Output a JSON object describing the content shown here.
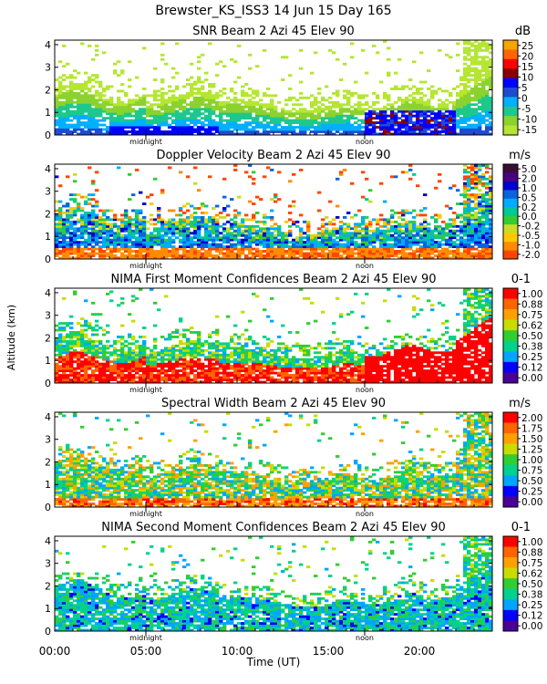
{
  "figure": {
    "title": "Brewster_KS_ISS3  14 Jun 15 Day 165",
    "xlabel": "Time (UT)",
    "ylabel": "Altitude (km)",
    "x_ticks": [
      {
        "value": 0,
        "label": "00:00"
      },
      {
        "value": 5,
        "label": "05:00"
      },
      {
        "value": 10,
        "label": "10:00"
      },
      {
        "value": 15,
        "label": "15:00"
      },
      {
        "value": 20,
        "label": "20:00"
      }
    ],
    "markers": [
      {
        "value": 5,
        "label": "midnight"
      },
      {
        "value": 17,
        "label": "noon"
      }
    ]
  },
  "chart_data": [
    {
      "type": "heatmap",
      "title": "SNR Beam 2 Azi  45 Elev 90",
      "units": "dB",
      "xlim": [
        0,
        24
      ],
      "ylim": [
        0,
        4.2
      ],
      "y_ticks": [
        0,
        1,
        2,
        3,
        4
      ],
      "colorbar": {
        "labels": [
          "25",
          "20",
          "15",
          "10",
          "5",
          "0",
          "-5",
          "-10",
          "-15"
        ],
        "colors": [
          "#f5a500",
          "#ff6600",
          "#ff0000",
          "#8b0000",
          "#0000ff",
          "#1e4bd2",
          "#00b0ff",
          "#1ec88c",
          "#8bd22e",
          "#b4e632"
        ]
      }
    },
    {
      "type": "heatmap",
      "title": "Doppler Velocity Beam 2 Azi  45 Elev 90",
      "units": "m/s",
      "xlim": [
        0,
        24
      ],
      "ylim": [
        0,
        4.2
      ],
      "y_ticks": [
        0,
        1,
        2,
        3,
        4
      ],
      "colorbar": {
        "labels": [
          "5.0",
          "2.0",
          "1.0",
          "0.5",
          "0.2",
          "0.0",
          "-0.2",
          "-0.5",
          "-1.0",
          "-2.0"
        ],
        "colors": [
          "#3a0f36",
          "#4b0082",
          "#0000cd",
          "#0a64dc",
          "#00aaff",
          "#00c896",
          "#32cd32",
          "#c8dc28",
          "#ffc800",
          "#ff8c00",
          "#ff4500"
        ]
      }
    },
    {
      "type": "heatmap",
      "title": "NIMA First Moment Confidences Beam 2 Azi  45 Elev 90",
      "units": "0-1",
      "xlim": [
        0,
        24
      ],
      "ylim": [
        0,
        4.2
      ],
      "y_ticks": [
        0,
        1,
        2,
        3,
        4
      ],
      "colorbar": {
        "labels": [
          "1.00",
          "0.88",
          "0.75",
          "0.62",
          "0.50",
          "0.38",
          "0.25",
          "0.12",
          "0.00"
        ],
        "colors": [
          "#ff0000",
          "#ff6400",
          "#ffa000",
          "#c8dc00",
          "#32cd32",
          "#00d28c",
          "#00a5ff",
          "#0000ff",
          "#4b0096"
        ]
      }
    },
    {
      "type": "heatmap",
      "title": "Spectral Width Beam 2 Azi  45 Elev 90",
      "units": "m/s",
      "xlim": [
        0,
        24
      ],
      "ylim": [
        0,
        4.2
      ],
      "y_ticks": [
        0,
        1,
        2,
        3,
        4
      ],
      "colorbar": {
        "labels": [
          "2.00",
          "1.75",
          "1.50",
          "1.25",
          "1.00",
          "0.75",
          "0.50",
          "0.25",
          "0.00"
        ],
        "colors": [
          "#ff0000",
          "#ff6400",
          "#ffa000",
          "#c8dc00",
          "#32cd32",
          "#00d28c",
          "#00a5ff",
          "#0000ff",
          "#4b0096"
        ]
      }
    },
    {
      "type": "heatmap",
      "title": "NIMA Second Moment Confidences Beam 2 Azi  45 Elev 90",
      "units": "0-1",
      "xlim": [
        0,
        24
      ],
      "ylim": [
        0,
        4.2
      ],
      "y_ticks": [
        0,
        1,
        2,
        3,
        4
      ],
      "colorbar": {
        "labels": [
          "1.00",
          "0.88",
          "0.75",
          "0.62",
          "0.50",
          "0.38",
          "0.25",
          "0.12",
          "0.00"
        ],
        "colors": [
          "#ff0000",
          "#ff6400",
          "#ffa000",
          "#c8dc00",
          "#32cd32",
          "#00d28c",
          "#00a5ff",
          "#0000ff",
          "#4b0096"
        ]
      }
    }
  ]
}
